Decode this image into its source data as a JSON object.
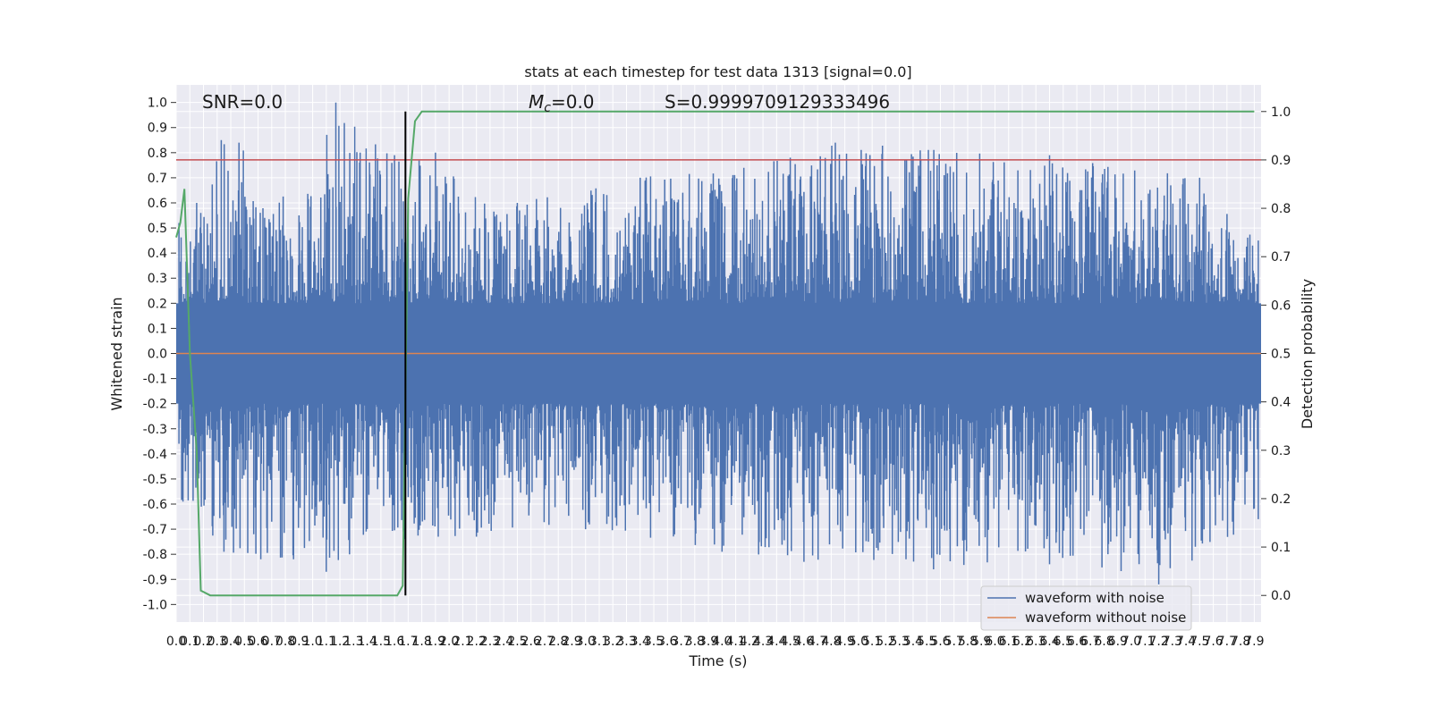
{
  "chart_data": {
    "type": "line",
    "title": "stats at each timestep for test data 1313 [signal=0.0]",
    "xlabel": "Time (s)",
    "ylabel": "Whitened strain",
    "y2label": "Detection probability",
    "xlim": [
      0.0,
      7.95
    ],
    "ylim": [
      -1.07,
      1.07
    ],
    "y2lim": [
      -0.055,
      1.055
    ],
    "x_ticks": [
      0.0,
      0.1,
      0.2,
      0.3,
      0.4,
      0.5,
      0.6,
      0.7,
      0.8,
      0.9,
      1.0,
      1.1,
      1.2,
      1.3,
      1.4,
      1.5,
      1.6,
      1.7,
      1.8,
      1.9,
      2.0,
      2.1,
      2.2,
      2.3,
      2.4,
      2.5,
      2.6,
      2.7,
      2.8,
      2.9,
      3.0,
      3.1,
      3.2,
      3.3,
      3.4,
      3.5,
      3.6,
      3.7,
      3.8,
      3.9,
      4.0,
      4.1,
      4.2,
      4.3,
      4.4,
      4.5,
      4.6,
      4.7,
      4.8,
      4.9,
      5.0,
      5.1,
      5.2,
      5.3,
      5.4,
      5.5,
      5.6,
      5.7,
      5.8,
      5.9,
      6.0,
      6.1,
      6.2,
      6.3,
      6.4,
      6.5,
      6.6,
      6.7,
      6.8,
      6.9,
      7.0,
      7.1,
      7.2,
      7.3,
      7.4,
      7.5,
      7.6,
      7.7,
      7.8,
      7.9
    ],
    "y_ticks": [
      1.0,
      0.9,
      0.8,
      0.7,
      0.6,
      0.5,
      0.4,
      0.3,
      0.2,
      0.1,
      0.0,
      -0.1,
      -0.2,
      -0.3,
      -0.4,
      -0.5,
      -0.6,
      -0.7,
      -0.8,
      -0.9,
      -1.0
    ],
    "y2_ticks": [
      1.0,
      0.9,
      0.8,
      0.7,
      0.6,
      0.5,
      0.4,
      0.3,
      0.2,
      0.1,
      0.0
    ],
    "series": [
      {
        "name": "waveform with noise",
        "color": "#4c72b0",
        "style": "dense noise band",
        "envelope_upper": [
          [
            0.02,
            0.52
          ],
          [
            0.15,
            0.6
          ],
          [
            0.33,
            0.85
          ],
          [
            0.46,
            0.84
          ],
          [
            0.9,
            0.55
          ],
          [
            1.17,
            1.0
          ],
          [
            1.6,
            0.79
          ],
          [
            1.9,
            0.8
          ],
          [
            2.5,
            0.6
          ],
          [
            3.4,
            0.7
          ],
          [
            4.5,
            0.78
          ],
          [
            4.83,
            0.84
          ],
          [
            6.4,
            0.79
          ],
          [
            7.5,
            0.7
          ],
          [
            7.93,
            0.45
          ]
        ],
        "envelope_lower": [
          [
            0.05,
            -0.59
          ],
          [
            0.35,
            -0.79
          ],
          [
            0.62,
            -0.82
          ],
          [
            0.86,
            -0.82
          ],
          [
            1.1,
            -0.87
          ],
          [
            1.27,
            -0.8
          ],
          [
            1.67,
            -0.74
          ],
          [
            2.2,
            -0.73
          ],
          [
            3.0,
            -0.7
          ],
          [
            4.0,
            -0.79
          ],
          [
            4.6,
            -0.83
          ],
          [
            5.55,
            -0.86
          ],
          [
            6.4,
            -0.84
          ],
          [
            7.2,
            -0.92
          ],
          [
            7.93,
            -0.66
          ]
        ]
      },
      {
        "name": "waveform without noise",
        "color": "#dd8452",
        "x": [
          0.0,
          7.95
        ],
        "y": [
          0.0,
          0.0
        ]
      },
      {
        "color": "#55a868",
        "axis": "right",
        "x": [
          0.0,
          0.03,
          0.06,
          0.1,
          0.15,
          0.18,
          0.25,
          0.5,
          1.0,
          1.5,
          1.62,
          1.66,
          1.7,
          1.75,
          1.8,
          1.9,
          3.0,
          5.0,
          7.9
        ],
        "y": [
          0.74,
          0.77,
          0.84,
          0.5,
          0.3,
          0.01,
          0.0,
          0.0,
          0.0,
          0.0,
          0.0,
          0.02,
          0.82,
          0.98,
          1.0,
          1.0,
          1.0,
          1.0,
          1.0
        ]
      }
    ],
    "threshold": {
      "axis": "right",
      "value": 0.9,
      "color": "#c44e52"
    },
    "marker": {
      "x": 1.68,
      "color": "#000000"
    },
    "annotations": {
      "snr": "SNR=0.0",
      "mc_symbol": "M",
      "mc_sub": "c",
      "mc_value": "=0.0",
      "s": "S=0.9999709129333496"
    },
    "legend": {
      "position": "lower-right"
    },
    "grid": true
  }
}
